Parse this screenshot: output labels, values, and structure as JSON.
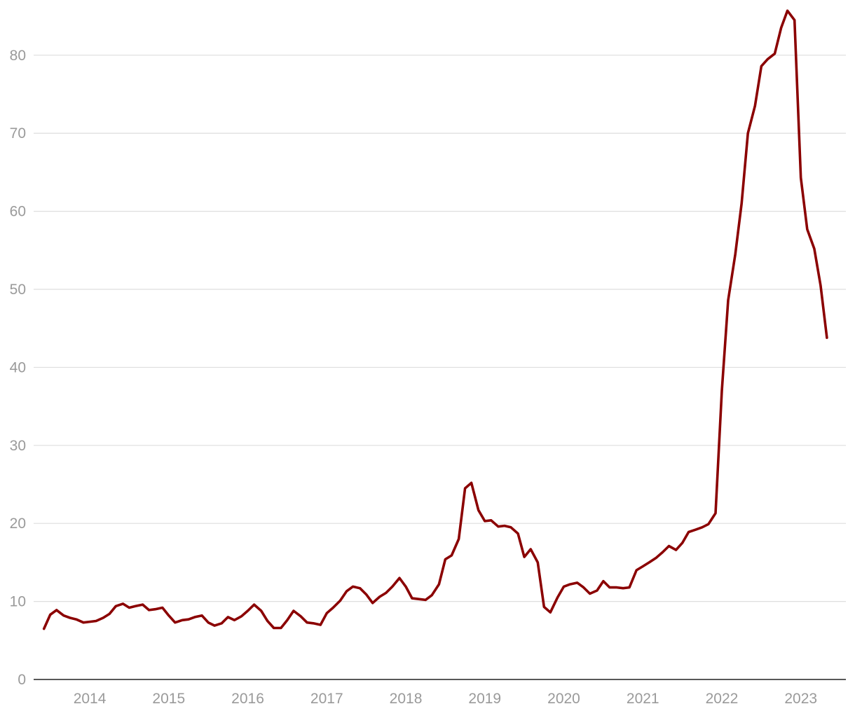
{
  "colors": {
    "series": "#8b0000",
    "grid": "#dedede",
    "axis": "#222222",
    "tick_text": "#9a9a9a"
  },
  "chart_data": {
    "type": "line",
    "title": "",
    "xlabel": "",
    "ylabel": "",
    "grid": true,
    "legend": "none",
    "ylim": [
      0,
      86
    ],
    "xlim": [
      2013.29,
      2023.57
    ],
    "y_ticks": [
      0,
      10,
      20,
      30,
      40,
      50,
      60,
      70,
      80
    ],
    "y_tick_labels": [
      "0",
      "10",
      "20",
      "30",
      "40",
      "50",
      "60",
      "70",
      "80"
    ],
    "x_ticks": [
      2014,
      2015,
      2016,
      2017,
      2018,
      2019,
      2020,
      2021,
      2022,
      2023
    ],
    "x_tick_labels": [
      "2014",
      "2015",
      "2016",
      "2017",
      "2018",
      "2019",
      "2020",
      "2021",
      "2022",
      "2023"
    ],
    "series": [
      {
        "values": [
          [
            2013.42,
            6.5
          ],
          [
            2013.5,
            8.3
          ],
          [
            2013.58,
            8.9
          ],
          [
            2013.67,
            8.2
          ],
          [
            2013.75,
            7.9
          ],
          [
            2013.83,
            7.7
          ],
          [
            2013.92,
            7.3
          ],
          [
            2014.0,
            7.4
          ],
          [
            2014.08,
            7.5
          ],
          [
            2014.17,
            7.9
          ],
          [
            2014.25,
            8.4
          ],
          [
            2014.33,
            9.4
          ],
          [
            2014.42,
            9.7
          ],
          [
            2014.5,
            9.2
          ],
          [
            2014.58,
            9.4
          ],
          [
            2014.67,
            9.6
          ],
          [
            2014.75,
            8.9
          ],
          [
            2014.83,
            9.0
          ],
          [
            2014.92,
            9.2
          ],
          [
            2015.0,
            8.2
          ],
          [
            2015.08,
            7.3
          ],
          [
            2015.17,
            7.6
          ],
          [
            2015.25,
            7.7
          ],
          [
            2015.33,
            8.0
          ],
          [
            2015.42,
            8.2
          ],
          [
            2015.5,
            7.3
          ],
          [
            2015.58,
            6.9
          ],
          [
            2015.67,
            7.2
          ],
          [
            2015.75,
            8.0
          ],
          [
            2015.83,
            7.6
          ],
          [
            2015.92,
            8.1
          ],
          [
            2016.0,
            8.8
          ],
          [
            2016.08,
            9.6
          ],
          [
            2016.17,
            8.8
          ],
          [
            2016.25,
            7.5
          ],
          [
            2016.33,
            6.6
          ],
          [
            2016.42,
            6.6
          ],
          [
            2016.5,
            7.6
          ],
          [
            2016.58,
            8.8
          ],
          [
            2016.67,
            8.1
          ],
          [
            2016.75,
            7.3
          ],
          [
            2016.83,
            7.2
          ],
          [
            2016.92,
            7.0
          ],
          [
            2017.0,
            8.5
          ],
          [
            2017.08,
            9.2
          ],
          [
            2017.17,
            10.1
          ],
          [
            2017.25,
            11.3
          ],
          [
            2017.33,
            11.9
          ],
          [
            2017.42,
            11.7
          ],
          [
            2017.5,
            10.9
          ],
          [
            2017.58,
            9.8
          ],
          [
            2017.67,
            10.6
          ],
          [
            2017.75,
            11.1
          ],
          [
            2017.83,
            11.9
          ],
          [
            2017.92,
            13.0
          ],
          [
            2018.0,
            11.9
          ],
          [
            2018.08,
            10.4
          ],
          [
            2018.17,
            10.3
          ],
          [
            2018.25,
            10.2
          ],
          [
            2018.33,
            10.8
          ],
          [
            2018.42,
            12.2
          ],
          [
            2018.5,
            15.4
          ],
          [
            2018.58,
            15.9
          ],
          [
            2018.67,
            18.0
          ],
          [
            2018.75,
            24.5
          ],
          [
            2018.83,
            25.2
          ],
          [
            2018.92,
            21.7
          ],
          [
            2019.0,
            20.3
          ],
          [
            2019.08,
            20.4
          ],
          [
            2019.17,
            19.6
          ],
          [
            2019.25,
            19.7
          ],
          [
            2019.33,
            19.5
          ],
          [
            2019.42,
            18.7
          ],
          [
            2019.5,
            15.7
          ],
          [
            2019.58,
            16.7
          ],
          [
            2019.67,
            15.0
          ],
          [
            2019.75,
            9.3
          ],
          [
            2019.83,
            8.6
          ],
          [
            2019.92,
            10.5
          ],
          [
            2020.0,
            11.9
          ],
          [
            2020.08,
            12.2
          ],
          [
            2020.17,
            12.4
          ],
          [
            2020.25,
            11.8
          ],
          [
            2020.33,
            11.0
          ],
          [
            2020.42,
            11.4
          ],
          [
            2020.5,
            12.6
          ],
          [
            2020.58,
            11.8
          ],
          [
            2020.67,
            11.8
          ],
          [
            2020.75,
            11.7
          ],
          [
            2020.83,
            11.8
          ],
          [
            2020.92,
            14.0
          ],
          [
            2021.0,
            14.5
          ],
          [
            2021.08,
            15.0
          ],
          [
            2021.17,
            15.6
          ],
          [
            2021.25,
            16.3
          ],
          [
            2021.33,
            17.1
          ],
          [
            2021.42,
            16.6
          ],
          [
            2021.5,
            17.5
          ],
          [
            2021.58,
            18.9
          ],
          [
            2021.67,
            19.2
          ],
          [
            2021.75,
            19.5
          ],
          [
            2021.83,
            19.9
          ],
          [
            2021.92,
            21.3
          ],
          [
            2022.0,
            37.0
          ],
          [
            2022.08,
            48.6
          ],
          [
            2022.17,
            54.5
          ],
          [
            2022.25,
            61.0
          ],
          [
            2022.33,
            70.0
          ],
          [
            2022.42,
            73.5
          ],
          [
            2022.5,
            78.6
          ],
          [
            2022.58,
            79.5
          ],
          [
            2022.67,
            80.2
          ],
          [
            2022.75,
            83.5
          ],
          [
            2022.83,
            85.7
          ],
          [
            2022.92,
            84.5
          ],
          [
            2023.0,
            64.3
          ],
          [
            2023.08,
            57.7
          ],
          [
            2023.17,
            55.2
          ],
          [
            2023.25,
            50.5
          ],
          [
            2023.33,
            43.8
          ]
        ]
      }
    ]
  }
}
